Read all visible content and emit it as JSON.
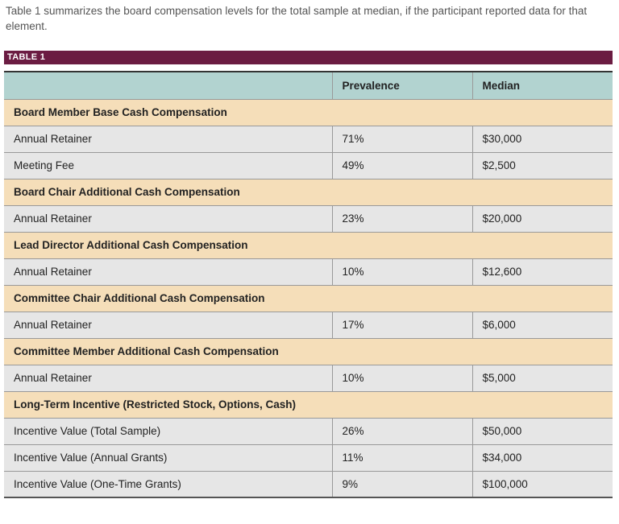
{
  "intro": "Table 1 summarizes the board compensation levels for the total sample at median, if the participant reported data for that element.",
  "table_title": "TABLE 1",
  "colors": {
    "title_bar": "#6b1c42",
    "header": "#b2d3d0",
    "section": "#f5deb9",
    "row": "#e6e6e6"
  },
  "headers": [
    "",
    "Prevalence",
    "Median"
  ],
  "rows": [
    {
      "type": "section",
      "label": "Board Member Base Cash Compensation"
    },
    {
      "type": "row",
      "label": "Annual Retainer",
      "prevalence": "71%",
      "median": "$30,000"
    },
    {
      "type": "row",
      "label": "Meeting Fee",
      "prevalence": "49%",
      "median": "$2,500"
    },
    {
      "type": "section",
      "label": "Board Chair Additional Cash Compensation"
    },
    {
      "type": "row",
      "label": "Annual Retainer",
      "prevalence": "23%",
      "median": "$20,000"
    },
    {
      "type": "section",
      "label": "Lead Director Additional Cash Compensation"
    },
    {
      "type": "row",
      "label": "Annual Retainer",
      "prevalence": "10%",
      "median": "$12,600"
    },
    {
      "type": "section",
      "label": "Committee Chair Additional Cash Compensation"
    },
    {
      "type": "row",
      "label": "Annual Retainer",
      "prevalence": "17%",
      "median": "$6,000"
    },
    {
      "type": "section",
      "label": "Committee Member Additional Cash Compensation"
    },
    {
      "type": "row",
      "label": "Annual Retainer",
      "prevalence": "10%",
      "median": "$5,000"
    },
    {
      "type": "section",
      "label": "Long-Term Incentive (Restricted Stock, Options, Cash)"
    },
    {
      "type": "row",
      "label": "Incentive Value (Total Sample)",
      "prevalence": "26%",
      "median": "$50,000"
    },
    {
      "type": "row",
      "label": "Incentive Value (Annual Grants)",
      "prevalence": "11%",
      "median": "$34,000"
    },
    {
      "type": "row",
      "label": "Incentive Value (One-Time Grants)",
      "prevalence": "9%",
      "median": "$100,000"
    }
  ]
}
